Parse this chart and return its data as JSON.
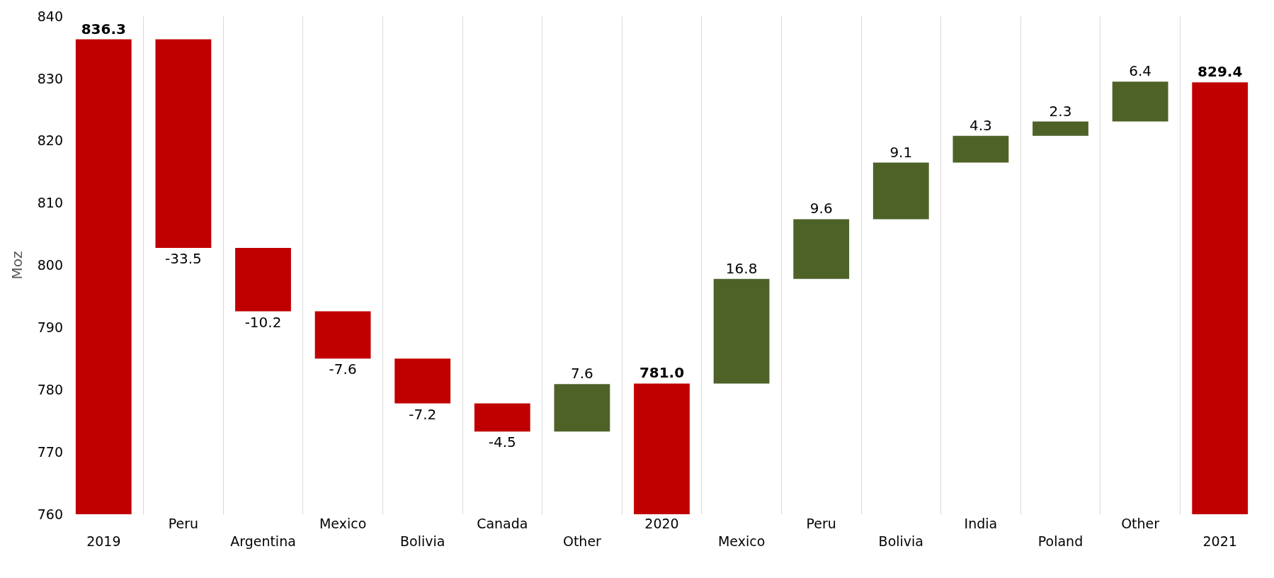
{
  "chart_data": {
    "type": "bar",
    "ylabel": "Moz",
    "categories": [
      "2019",
      "Peru",
      "Argentina",
      "Mexico",
      "Bolivia",
      "Canada",
      "Other",
      "2020",
      "Mexico",
      "Peru",
      "Bolivia",
      "India",
      "Poland",
      "Other",
      "2021"
    ],
    "values": [
      836.3,
      -33.5,
      -10.2,
      -7.6,
      -7.2,
      -4.5,
      7.6,
      781.0,
      16.8,
      9.6,
      9.1,
      4.3,
      2.3,
      6.4,
      829.4
    ],
    "base": [
      null,
      836.3,
      802.8,
      792.6,
      785.0,
      777.8,
      773.3,
      null,
      781.0,
      797.8,
      807.4,
      816.5,
      820.8,
      823.1,
      null
    ],
    "value_labels": [
      "836.3",
      "-33.5",
      "-10.2",
      "-7.6",
      "-7.2",
      "-4.5",
      "7.6",
      "781.0",
      "16.8",
      "9.6",
      "9.1",
      "4.3",
      "2.3",
      "6.4",
      "829.4"
    ],
    "colors": [
      "#c00000",
      "#c00000",
      "#c00000",
      "#c00000",
      "#c00000",
      "#c00000",
      "#4e6228",
      "#c00000",
      "#4e6228",
      "#4e6228",
      "#4e6228",
      "#4e6228",
      "#4e6228",
      "#4e6228",
      "#c00000"
    ],
    "ylim": [
      760,
      840
    ],
    "yticks": [
      760,
      770,
      780,
      790,
      800,
      810,
      820,
      830,
      840
    ],
    "grid": "x"
  }
}
